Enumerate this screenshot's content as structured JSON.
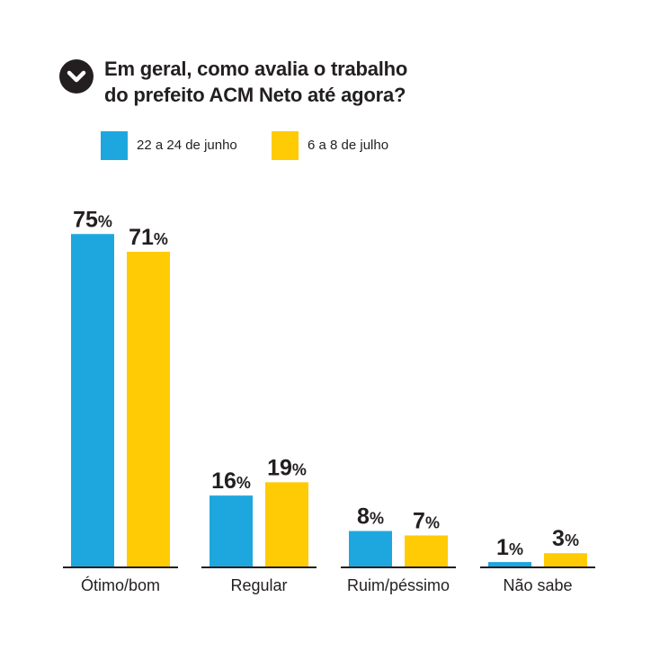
{
  "header": {
    "icon": "chevron-down-icon",
    "title_line1": "Em geral, como avalia o trabalho",
    "title_line2": "do prefeito ACM Neto até agora?"
  },
  "colors": {
    "series1": "#1ea7df",
    "series2": "#ffcb05",
    "text": "#231f20"
  },
  "chart_data": {
    "type": "bar",
    "title": "Em geral, como avalia o trabalho do prefeito ACM Neto até agora?",
    "categories": [
      "Ótimo/bom",
      "Regular",
      "Ruim/péssimo",
      "Não sabe"
    ],
    "series": [
      {
        "name": "22 a 24 de junho",
        "values": [
          75,
          16,
          8,
          1
        ]
      },
      {
        "name": "6 a 8 de julho",
        "values": [
          71,
          19,
          7,
          3
        ]
      }
    ],
    "unit": "%",
    "ylim": [
      0,
      100
    ],
    "grid": false,
    "legend_position": "top-left"
  }
}
